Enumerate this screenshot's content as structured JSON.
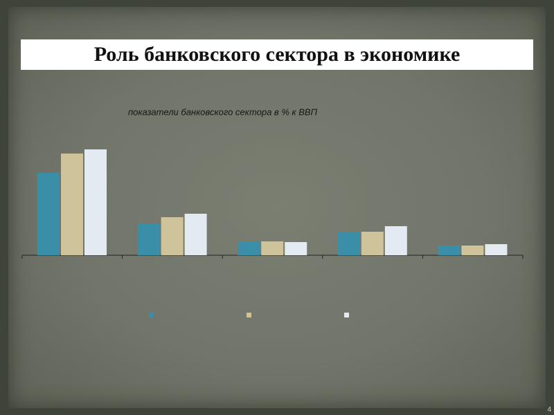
{
  "slide": {
    "title": "Роль банковского сектора в экономике",
    "page_number": "4"
  },
  "chart_data": {
    "type": "bar",
    "title": "показатели банковского сектора в % к ВВП",
    "categories": [
      null,
      null,
      null,
      null,
      null
    ],
    "series": [
      {
        "color": "#3a8ea8",
        "values": [
          119,
          46,
          19,
          34,
          14
        ]
      },
      {
        "color": "#cfc39c",
        "values": [
          147,
          55,
          20,
          34,
          14
        ]
      },
      {
        "color": "#e4eaf1",
        "values": [
          153,
          60,
          19,
          42,
          16
        ]
      }
    ],
    "ylim": [
      0,
      160
    ],
    "grid": false
  }
}
